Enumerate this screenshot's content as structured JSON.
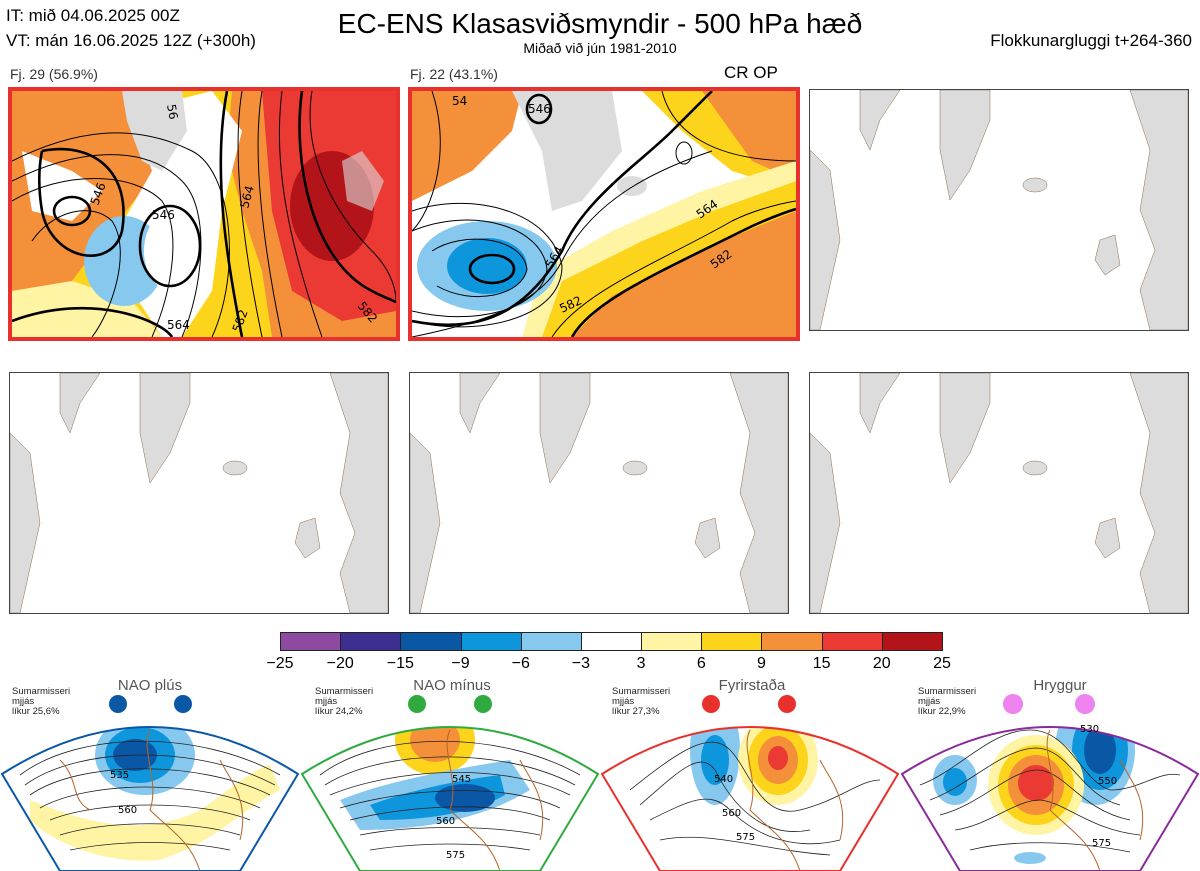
{
  "header": {
    "it_line": "IT: mið 04.06.2025 00Z",
    "vt_line": "VT: mán 16.06.2025 12Z  (+300h)",
    "title": "EC-ENS Klasasviðsmyndir - 500 hPa hæð",
    "subtitle": "Miðað við jún 1981-2010",
    "window": "Flokkunargluggi t+264-360"
  },
  "panels": [
    {
      "label": "Fj. 29 (56.9%)",
      "selected": true,
      "contours": [
        "546",
        "546",
        "564",
        "564",
        "582",
        "582",
        "56"
      ]
    },
    {
      "label": "Fj. 22 (43.1%)",
      "selected": true,
      "contours": [
        "546",
        "564",
        "564",
        "582",
        "582",
        "54"
      ],
      "badge": "CR OP"
    },
    {
      "label": "",
      "selected": false
    },
    {
      "label": "",
      "selected": false
    },
    {
      "label": "",
      "selected": false
    },
    {
      "label": "",
      "selected": false
    }
  ],
  "chart_data": {
    "type": "heatmap",
    "title": "EC-ENS Klasasviðsmyndir - 500 hPa hæð",
    "colorbar": {
      "ticks": [
        "−25",
        "−20",
        "−15",
        "−9",
        "−6",
        "−3",
        "3",
        "6",
        "9",
        "15",
        "20",
        "25"
      ],
      "colors": [
        "#8c4aa0",
        "#3c2f8f",
        "#0a57a6",
        "#0e96dd",
        "#86c8ee",
        "#ffffff",
        "#fff4a3",
        "#fdd41c",
        "#f5903a",
        "#ea3a33",
        "#b2141a"
      ]
    },
    "clusters": [
      {
        "label": "Fj. 29",
        "members": 29,
        "percent": 56.9
      },
      {
        "label": "Fj. 22",
        "members": 22,
        "percent": 43.1
      }
    ]
  },
  "regimes": [
    {
      "name": "NAO plús",
      "info": [
        "Sumarmisseri",
        "mjjás",
        "líkur 25,6%"
      ],
      "color": "#0a57a6",
      "contours": [
        "535",
        "560"
      ]
    },
    {
      "name": "NAO mínus",
      "info": [
        "Sumarmisseri",
        "mjjás",
        "líkur 24,2%"
      ],
      "color": "#2faa3f",
      "contours": [
        "545",
        "560",
        "575"
      ]
    },
    {
      "name": "Fyrirstaða",
      "info": [
        "Sumarmisseri",
        "mjjás",
        "líkur 27,3%"
      ],
      "color": "#e8312c",
      "contours": [
        "540",
        "560",
        "575"
      ]
    },
    {
      "name": "Hryggur",
      "info": [
        "Sumarmisseri",
        "mjjás",
        "líkur 22,9%"
      ],
      "color": "#8a2a9a",
      "dot": "#ee82ee",
      "contours": [
        "530",
        "550",
        "575"
      ]
    }
  ]
}
